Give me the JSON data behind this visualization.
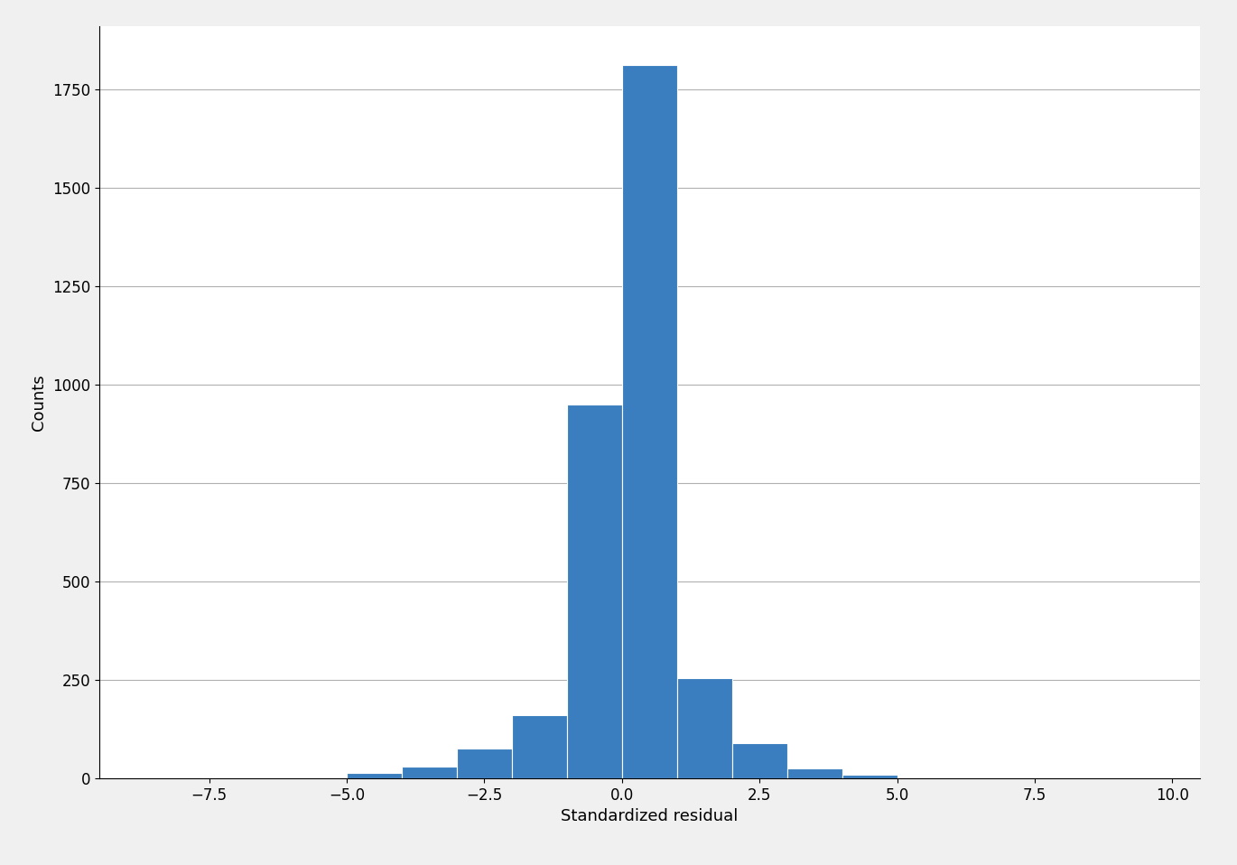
{
  "bar_edges": [
    -9.0,
    -8.0,
    -7.0,
    -6.0,
    -5.0,
    -4.0,
    -3.0,
    -2.0,
    -1.0,
    0.0,
    1.0,
    2.0,
    3.0,
    4.0,
    5.0,
    6.0,
    7.0,
    8.0,
    9.0,
    10.0
  ],
  "bar_heights": [
    0,
    0,
    0,
    0,
    15,
    30,
    75,
    160,
    950,
    1810,
    255,
    90,
    25,
    10,
    0,
    0,
    0,
    0,
    0
  ],
  "bar_color": "#3a7ebf",
  "bar_edgecolor": "white",
  "xlabel": "Standardized residual",
  "ylabel": "Counts",
  "xlim": [
    -9.5,
    10.5
  ],
  "ylim": [
    0,
    1910
  ],
  "xticks": [
    -7.5,
    -5.0,
    -2.5,
    0.0,
    2.5,
    5.0,
    7.5,
    10.0
  ],
  "yticks": [
    0,
    250,
    500,
    750,
    1000,
    1250,
    1500,
    1750
  ],
  "grid_color": "#b0b0b0",
  "grid_linewidth": 0.8,
  "background_color": "#ffffff",
  "xlabel_fontsize": 13,
  "ylabel_fontsize": 13,
  "tick_fontsize": 12,
  "fig_facecolor": "#f0f0f0"
}
